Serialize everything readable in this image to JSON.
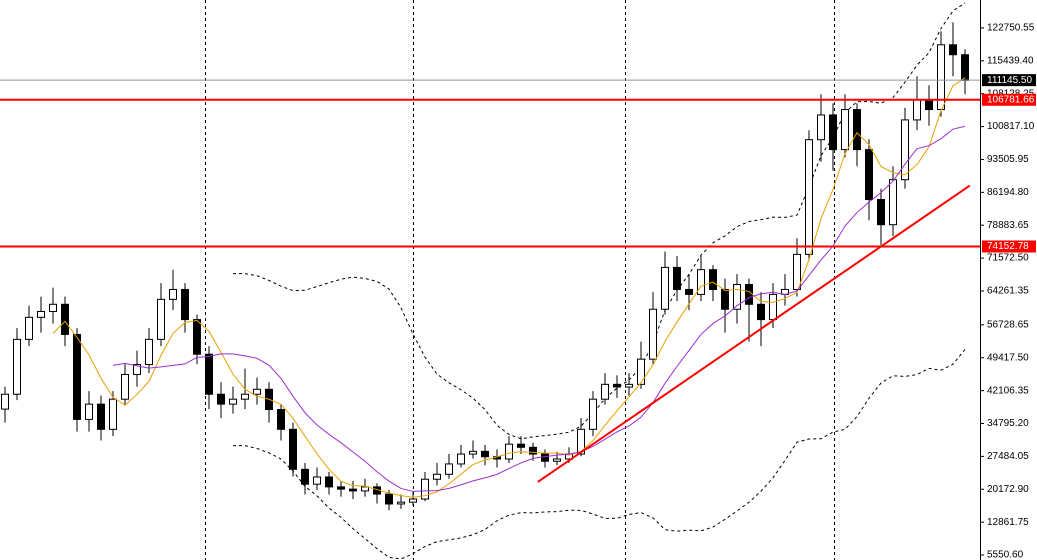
{
  "chart_data": {
    "type": "candlestick",
    "open": [
      38000,
      41300,
      53500,
      58400,
      59700,
      61300,
      54600,
      35700,
      39100,
      33500,
      40200,
      45700,
      47900,
      53500,
      62400,
      64600,
      57900,
      50200,
      41300,
      39100,
      40200,
      41300,
      42400,
      37900,
      33500,
      24600,
      21300,
      22900,
      20700,
      20200,
      19800,
      20700,
      19100,
      16900,
      17300,
      18000,
      22400,
      23500,
      25800,
      28000,
      28600,
      27400,
      26900,
      30200,
      29500,
      28000,
      26400,
      26900,
      28000,
      33500,
      40200,
      43500,
      42900,
      43500,
      49100,
      60200,
      69500,
      64600,
      63500,
      69000,
      64600,
      60200,
      65700,
      61300,
      57900,
      63500,
      64600,
      72400,
      97900,
      103400,
      95700,
      104600,
      95700,
      84600,
      79000,
      89000,
      102300,
      106800,
      104600,
      119000,
      116800
    ],
    "high": [
      43000,
      56000,
      61000,
      63000,
      65000,
      63000,
      56000,
      42000,
      41000,
      42000,
      48000,
      51000,
      56000,
      66000,
      69000,
      66000,
      59000,
      52000,
      44000,
      43000,
      47000,
      45000,
      44000,
      39000,
      35000,
      26000,
      25000,
      24000,
      22000,
      22000,
      22500,
      21500,
      20000,
      19000,
      19500,
      24000,
      26000,
      28000,
      30000,
      31000,
      30000,
      29000,
      32000,
      32000,
      30500,
      29000,
      28500,
      29500,
      36000,
      42000,
      46000,
      45500,
      46000,
      53000,
      64000,
      73000,
      72000,
      68000,
      72000,
      70000,
      67000,
      68000,
      67000,
      64000,
      66000,
      68000,
      76000,
      100000,
      108000,
      106000,
      108000,
      106000,
      98000,
      87000,
      92000,
      105000,
      112000,
      110000,
      122000,
      124000,
      118000
    ],
    "low": [
      35000,
      40000,
      52000,
      55000,
      57000,
      52000,
      33000,
      33000,
      31000,
      32000,
      39000,
      43000,
      46000,
      52000,
      60000,
      55000,
      48000,
      38000,
      36000,
      37000,
      38000,
      39000,
      35000,
      31000,
      23000,
      19000,
      20000,
      19000,
      18500,
      18000,
      18500,
      17000,
      15500,
      15800,
      16500,
      17500,
      21000,
      22500,
      25000,
      27000,
      25500,
      25000,
      26000,
      28000,
      26500,
      25000,
      25500,
      26000,
      27500,
      32000,
      39000,
      40500,
      41000,
      42500,
      48000,
      59000,
      62000,
      60000,
      62000,
      62000,
      55000,
      57000,
      53000,
      52000,
      56000,
      61000,
      63000,
      71000,
      93000,
      91000,
      94000,
      92000,
      80000,
      74500,
      76500,
      87000,
      100000,
      101000,
      103000,
      112000,
      108000
    ],
    "close": [
      41300,
      53500,
      58400,
      59700,
      61300,
      54600,
      35700,
      39100,
      33500,
      40200,
      45700,
      47900,
      53500,
      62400,
      64600,
      57900,
      50200,
      41300,
      39100,
      40200,
      41300,
      42400,
      37900,
      33500,
      24600,
      21300,
      22900,
      20700,
      20200,
      19800,
      20700,
      19100,
      16900,
      17300,
      18000,
      22400,
      23500,
      25800,
      28000,
      28600,
      27400,
      26900,
      30200,
      29500,
      28000,
      26400,
      26900,
      28000,
      33500,
      40200,
      43500,
      42900,
      43500,
      49100,
      60200,
      69500,
      64600,
      63500,
      69000,
      64600,
      60200,
      65700,
      61300,
      57900,
      63500,
      64600,
      72400,
      97900,
      103400,
      95700,
      104600,
      95700,
      84600,
      79000,
      89000,
      102300,
      106800,
      104600,
      119000,
      116800,
      111100
    ],
    "ylim": [
      4441,
      128965
    ],
    "yticks": [
      122750.55,
      {
        "value": 115439.4,
        "label": "115439.40"
      },
      108128.25,
      {
        "value": 100817.1,
        "label": "100817.10"
      },
      93505.95,
      {
        "value": 86194.8,
        "label": "86194.80"
      },
      78883.65,
      {
        "value": 71572.5,
        "label": "71572.50"
      },
      64261.35,
      56728.65,
      {
        "value": 49417.5,
        "label": "49417.50"
      },
      42106.35,
      {
        "value": 34795.2,
        "label": "34795.20"
      },
      27484.05,
      {
        "value": 20172.9,
        "label": "20172.90"
      },
      12861.75,
      {
        "value": 5550.6,
        "label": "5550.60"
      }
    ],
    "levels": [
      106781.66,
      74152.78
    ],
    "level_color": "#ff0000",
    "last_price": {
      "value": 111145.5,
      "label": "111145.50"
    },
    "trendline": {
      "x": [
        44.4,
        80.4
      ],
      "y": [
        21800,
        87700
      ],
      "color": "#ff0000"
    },
    "ma_colors": [
      "#e8a000",
      "#9b30d0"
    ]
  }
}
